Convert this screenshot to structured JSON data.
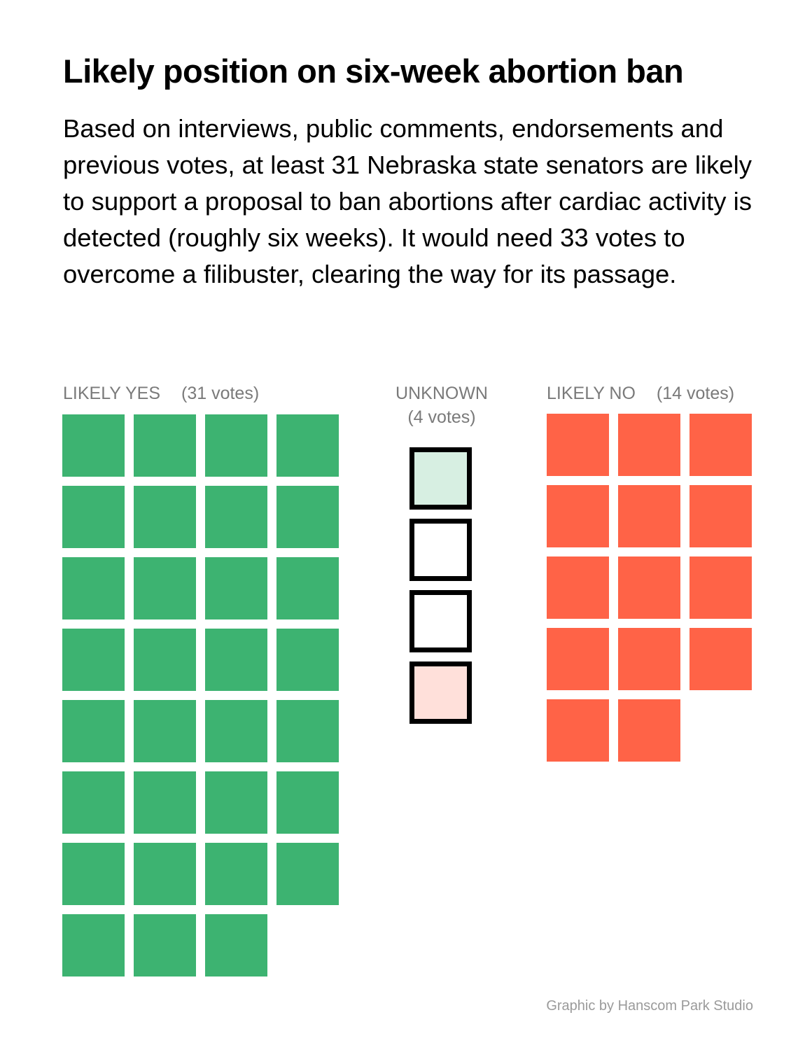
{
  "title": "Likely position on six-week abortion ban",
  "subtitle": "Based on interviews, public comments, endorsements and previous votes, at least 31 Nebraska state senators are likely to support a proposal to ban abortions after cardiac activity is detected (roughly six weeks). It would need 33 votes to overcome a filibuster, clearing the way for its passage.",
  "credit": "Graphic by Hanscom Park Studio",
  "chart_data": {
    "type": "waffle",
    "title": "Likely position on six-week abortion ban",
    "groups": [
      {
        "key": "yes",
        "label": "LIKELY YES",
        "count_label": "(31 votes)",
        "value": 31,
        "color": "#3db371"
      },
      {
        "key": "unknown",
        "label": "UNKNOWN",
        "count_label": "(4 votes)",
        "value": 4,
        "color": "#ffffff",
        "outline_color": "#000000",
        "cell_colors": [
          "#d7efe2",
          "#ffffff",
          "#ffffff",
          "#ffe0da"
        ]
      },
      {
        "key": "no",
        "label": "LIKELY NO",
        "count_label": "(14 votes)",
        "value": 14,
        "color": "#ff6347"
      }
    ]
  }
}
